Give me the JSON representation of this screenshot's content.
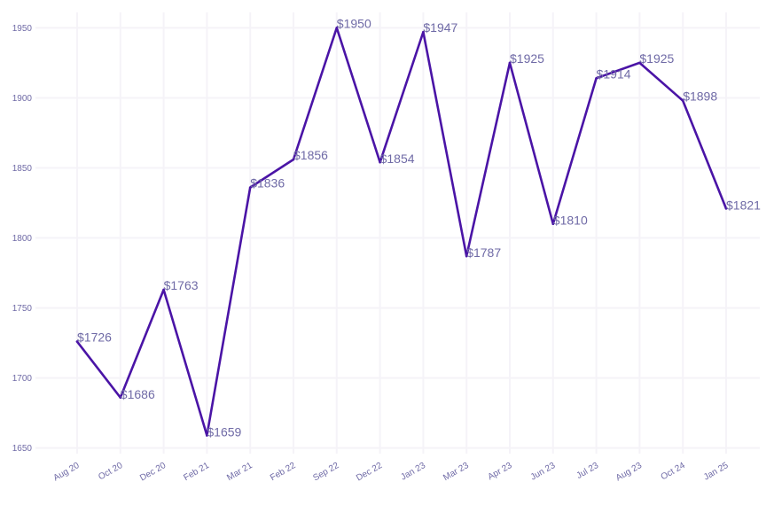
{
  "chart_data": {
    "type": "line",
    "title": "",
    "xlabel": "",
    "ylabel": "",
    "categories": [
      "Aug 20",
      "Oct 20",
      "Dec 20",
      "Feb 21",
      "Mar 21",
      "Feb 22",
      "Sep 22",
      "Dec 22",
      "Jan 23",
      "Mar 23",
      "Apr 23",
      "Jun 23",
      "Jul 23",
      "Aug 23",
      "Oct 24",
      "Jan 25"
    ],
    "values": [
      1726,
      1686,
      1763,
      1659,
      1836,
      1856,
      1950,
      1854,
      1947,
      1787,
      1925,
      1810,
      1914,
      1925,
      1898,
      1821
    ],
    "data_labels": [
      "$1726",
      "$1686",
      "$1763",
      "$1659",
      "$1836",
      "$1856",
      "$1950",
      "$1854",
      "$1947",
      "$1787",
      "$1925",
      "$1810",
      "$1914",
      "$1925",
      "$1898",
      "$1821"
    ],
    "yticks": [
      1650,
      1700,
      1750,
      1800,
      1850,
      1900,
      1950
    ],
    "ylim": [
      1646,
      1961
    ],
    "grid": true,
    "line_color": "#4a14a6",
    "label_color": "#6f6aa6",
    "tick_color": "#6f6aa6",
    "grid_color": "#f5f3f8"
  }
}
